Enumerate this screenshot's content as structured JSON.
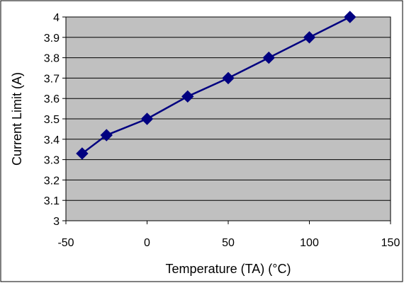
{
  "chart_data": {
    "type": "line",
    "title": "",
    "xlabel": "Temperature (TA) (°C)",
    "ylabel": "Current Limit (A)",
    "xlim": [
      -50,
      150
    ],
    "ylim": [
      3,
      4
    ],
    "xticks": [
      -50,
      0,
      50,
      100,
      150
    ],
    "yticks": [
      3,
      3.1,
      3.2,
      3.3,
      3.4,
      3.5,
      3.6,
      3.7,
      3.8,
      3.9,
      4
    ],
    "grid": "horizontal",
    "legend": "none",
    "series": [
      {
        "x": [
          -40,
          -25,
          0,
          25,
          50,
          75,
          100,
          125
        ],
        "y": [
          3.33,
          3.42,
          3.5,
          3.61,
          3.7,
          3.8,
          3.9,
          4.0
        ]
      }
    ],
    "colors": {
      "plot_background": "#c0c0c0",
      "series": "#000080",
      "grid": "#000000",
      "frame": "#000000"
    },
    "marker": "diamond"
  }
}
